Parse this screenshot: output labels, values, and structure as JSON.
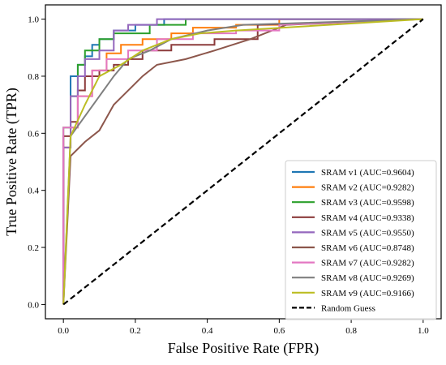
{
  "chart_data": {
    "type": "line",
    "title": "",
    "xlabel": "False Positive Rate (FPR)",
    "ylabel": "True Positive Rate (TPR)",
    "xlim": [
      -0.05,
      1.05
    ],
    "ylim": [
      -0.05,
      1.05
    ],
    "xticks": [
      "0.0",
      "0.2",
      "0.4",
      "0.6",
      "0.8",
      "1.0"
    ],
    "yticks": [
      "0.0",
      "0.2",
      "0.4",
      "0.6",
      "0.8",
      "1.0"
    ],
    "grid": false,
    "legend_position": "bottom-right",
    "series": [
      {
        "name": "SRAM v1 (AUC=0.9604)",
        "color": "#1f77b4",
        "x": [
          0,
          0,
          0.02,
          0.02,
          0.04,
          0.04,
          0.06,
          0.06,
          0.08,
          0.08,
          0.1,
          0.1,
          0.14,
          0.14,
          0.2,
          0.2,
          0.28,
          0.28,
          1.0
        ],
        "y": [
          0,
          0.55,
          0.55,
          0.8,
          0.8,
          0.84,
          0.84,
          0.87,
          0.87,
          0.91,
          0.91,
          0.93,
          0.93,
          0.96,
          0.96,
          0.98,
          0.98,
          1.0,
          1.0
        ]
      },
      {
        "name": "SRAM v2 (AUC=0.9282)",
        "color": "#ff7f0e",
        "x": [
          0,
          0,
          0.02,
          0.02,
          0.04,
          0.04,
          0.08,
          0.08,
          0.12,
          0.12,
          0.16,
          0.16,
          0.22,
          0.22,
          0.3,
          0.3,
          0.36,
          0.36,
          0.48,
          0.48,
          0.6,
          0.6,
          1.0
        ],
        "y": [
          0,
          0.55,
          0.55,
          0.62,
          0.62,
          0.73,
          0.73,
          0.82,
          0.82,
          0.88,
          0.88,
          0.91,
          0.91,
          0.93,
          0.93,
          0.95,
          0.95,
          0.97,
          0.97,
          0.98,
          0.98,
          1.0,
          1.0
        ]
      },
      {
        "name": "SRAM v3 (AUC=0.9598)",
        "color": "#2ca02c",
        "x": [
          0,
          0,
          0.02,
          0.02,
          0.04,
          0.04,
          0.06,
          0.06,
          0.1,
          0.1,
          0.14,
          0.14,
          0.24,
          0.24,
          0.34,
          0.34,
          1.0
        ],
        "y": [
          0,
          0.62,
          0.62,
          0.73,
          0.73,
          0.84,
          0.84,
          0.89,
          0.89,
          0.93,
          0.93,
          0.95,
          0.95,
          0.98,
          0.98,
          1.0,
          1.0
        ]
      },
      {
        "name": "SRAM v4 (AUC=0.9338)",
        "color": "#8c3b3b",
        "x": [
          0,
          0,
          0.02,
          0.02,
          0.04,
          0.04,
          0.06,
          0.06,
          0.1,
          0.1,
          0.14,
          0.14,
          0.18,
          0.18,
          0.22,
          0.22,
          0.3,
          0.3,
          0.42,
          0.42,
          0.54,
          0.54,
          1.0
        ],
        "y": [
          0,
          0.59,
          0.59,
          0.64,
          0.64,
          0.75,
          0.75,
          0.8,
          0.8,
          0.82,
          0.82,
          0.84,
          0.84,
          0.86,
          0.86,
          0.89,
          0.89,
          0.91,
          0.91,
          0.93,
          0.93,
          0.98,
          1.0
        ]
      },
      {
        "name": "SRAM v5 (AUC=0.9550)",
        "color": "#9467bd",
        "x": [
          0,
          0,
          0.02,
          0.02,
          0.04,
          0.04,
          0.06,
          0.06,
          0.1,
          0.1,
          0.14,
          0.14,
          0.18,
          0.18,
          0.26,
          0.26,
          0.34,
          0.34,
          1.0
        ],
        "y": [
          0,
          0.55,
          0.55,
          0.73,
          0.73,
          0.8,
          0.8,
          0.86,
          0.86,
          0.89,
          0.89,
          0.96,
          0.96,
          0.98,
          0.98,
          1.0,
          1.0,
          1.0,
          1.0
        ]
      },
      {
        "name": "SRAM v6 (AUC=0.8748)",
        "color": "#8c564b",
        "x": [
          0,
          0.02,
          0.02,
          0.06,
          0.06,
          0.1,
          0.1,
          0.14,
          0.14,
          0.18,
          0.18,
          0.22,
          0.22,
          0.26,
          0.26,
          0.34,
          0.34,
          0.42,
          0.42,
          0.52,
          0.52,
          0.62,
          0.62,
          1.0
        ],
        "y": [
          0,
          0.52,
          0.52,
          0.57,
          0.57,
          0.61,
          0.61,
          0.7,
          0.7,
          0.75,
          0.75,
          0.8,
          0.8,
          0.84,
          0.84,
          0.86,
          0.86,
          0.89,
          0.89,
          0.93,
          0.93,
          0.98,
          0.98,
          1.0
        ]
      },
      {
        "name": "SRAM v7 (AUC=0.9282)",
        "color": "#e377c2",
        "x": [
          0,
          0,
          0.04,
          0.04,
          0.08,
          0.08,
          0.12,
          0.12,
          0.18,
          0.18,
          0.26,
          0.26,
          0.36,
          0.36,
          0.48,
          0.48,
          0.6,
          0.6,
          1.0
        ],
        "y": [
          0,
          0.62,
          0.62,
          0.73,
          0.73,
          0.82,
          0.82,
          0.86,
          0.86,
          0.89,
          0.89,
          0.93,
          0.93,
          0.95,
          0.95,
          0.96,
          0.96,
          0.98,
          1.0
        ]
      },
      {
        "name": "SRAM v8 (AUC=0.9269)",
        "color": "#7f7f7f",
        "x": [
          0,
          0.02,
          0.02,
          0.06,
          0.06,
          0.1,
          0.1,
          0.14,
          0.14,
          0.18,
          0.18,
          0.24,
          0.24,
          0.3,
          0.3,
          0.4,
          0.4,
          0.5,
          0.5,
          1.0
        ],
        "y": [
          0,
          0.59,
          0.59,
          0.66,
          0.66,
          0.73,
          0.73,
          0.8,
          0.8,
          0.86,
          0.86,
          0.89,
          0.89,
          0.93,
          0.93,
          0.96,
          0.96,
          0.98,
          0.98,
          1.0
        ]
      },
      {
        "name": "SRAM v9 (AUC=0.9166)",
        "color": "#bcbd22",
        "x": [
          0,
          0.02,
          0.02,
          0.06,
          0.06,
          0.1,
          0.1,
          0.16,
          0.16,
          0.22,
          0.22,
          0.3,
          0.3,
          0.38,
          0.38,
          0.48,
          0.48,
          1.0
        ],
        "y": [
          0,
          0.59,
          0.59,
          0.7,
          0.7,
          0.8,
          0.8,
          0.84,
          0.84,
          0.89,
          0.89,
          0.93,
          0.93,
          0.95,
          0.95,
          0.96,
          0.96,
          1.0
        ]
      }
    ],
    "reference_line": {
      "name": "Random Guess",
      "color": "#000000",
      "dash": "dashed",
      "x": [
        0,
        1
      ],
      "y": [
        0,
        1
      ]
    }
  }
}
